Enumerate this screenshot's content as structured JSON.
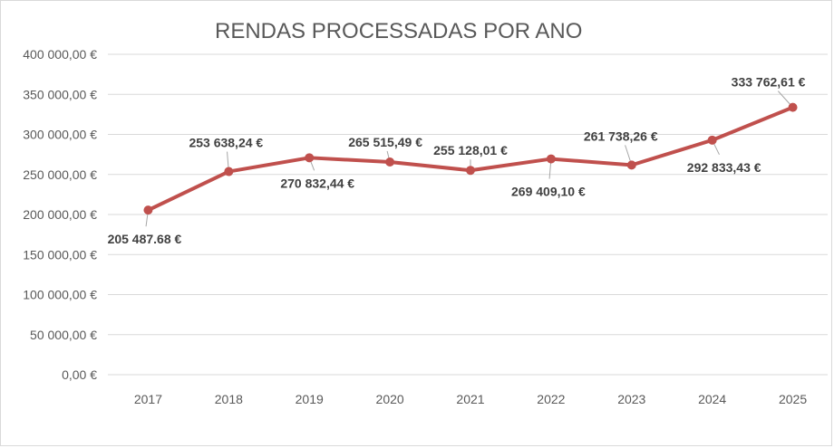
{
  "chart_data": {
    "type": "line",
    "title": "RENDAS PROCESSADAS POR ANO",
    "xlabel": "",
    "ylabel": "",
    "categories": [
      "2017",
      "2018",
      "2019",
      "2020",
      "2021",
      "2022",
      "2023",
      "2024",
      "2025"
    ],
    "series": [
      {
        "values": [
          205487.68,
          253638.24,
          270832.44,
          265515.49,
          255128.01,
          269409.1,
          261738.26,
          292833.43,
          333762.61
        ],
        "data_labels": [
          "205 487.68 €",
          "253 638,24 €",
          "270 832,44 €",
          "265 515,49 €",
          "255 128,01 €",
          "269 409,10 €",
          "261 738,26 €",
          "292 833,43 €",
          "333 762,61 €"
        ],
        "color": "#c0504d"
      }
    ],
    "ylim": [
      0,
      400000
    ],
    "yticks": [
      0,
      50000,
      100000,
      150000,
      200000,
      250000,
      300000,
      350000,
      400000
    ],
    "ytick_labels": [
      "0,00 €",
      "50 000,00 €",
      "100 000,00 €",
      "150 000,00 €",
      "200 000,00 €",
      "250 000,00 €",
      "300 000,00 €",
      "350 000,00 €",
      "400 000,00 €"
    ],
    "grid": true,
    "legend": "none"
  }
}
